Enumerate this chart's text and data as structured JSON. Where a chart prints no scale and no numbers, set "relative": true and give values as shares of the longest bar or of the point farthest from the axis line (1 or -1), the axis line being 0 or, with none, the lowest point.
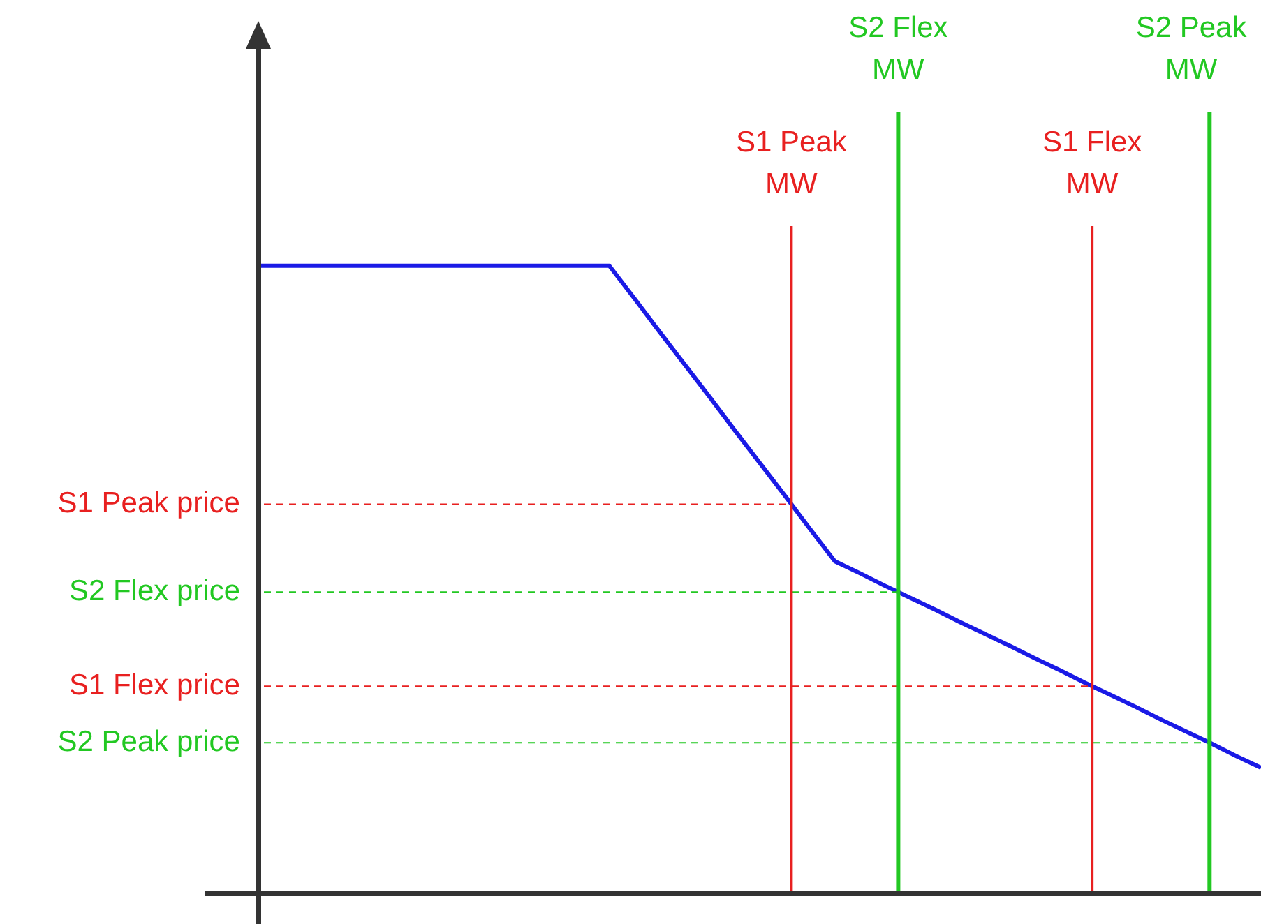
{
  "chart_data": {
    "type": "line",
    "relative": true,
    "categories": [
      null,
      null,
      null,
      null,
      null,
      null,
      null,
      null,
      null,
      null,
      null,
      null,
      null,
      null,
      null,
      null,
      null,
      null,
      null,
      null,
      null,
      null,
      null,
      null,
      null,
      null,
      null,
      null,
      null,
      null,
      null,
      null,
      null,
      null,
      null,
      null,
      null,
      null,
      null,
      null,
      null
    ],
    "series": [
      {
        "color": "#1a1ae6",
        "values": [
          1,
          1,
          1,
          1,
          1,
          1,
          1,
          1,
          1,
          1,
          1,
          1,
          1,
          1,
          1,
          0.948,
          0.895,
          0.843,
          0.791,
          0.738,
          0.686,
          0.634,
          0.581,
          0.529,
          0.51,
          0.49,
          0.471,
          0.452,
          0.432,
          0.413,
          0.394,
          0.374,
          0.355,
          0.335,
          0.316,
          0.297,
          0.277,
          0.258,
          0.239,
          0.219,
          0.2
        ]
      }
    ],
    "ref_lines": [
      {
        "axis": "y",
        "value": 0.62,
        "label": "S1 Peak price",
        "color": "#e82020",
        "line_style": "dashed"
      },
      {
        "axis": "y",
        "value": 0.48,
        "label": "S2 Flex price",
        "color": "#22c822",
        "line_style": "dashed"
      },
      {
        "axis": "y",
        "value": 0.33,
        "label": "S1 Flex price",
        "color": "#e82020",
        "line_style": "dashed"
      },
      {
        "axis": "y",
        "value": 0.24,
        "label": "S2 Peak price",
        "color": "#22c822",
        "line_style": "dashed"
      }
    ],
    "annotations": [
      "S1 Peak MW",
      "S2 Flex MW",
      "S1 Flex MW",
      "S2 Peak MW"
    ],
    "marker": "none"
  }
}
